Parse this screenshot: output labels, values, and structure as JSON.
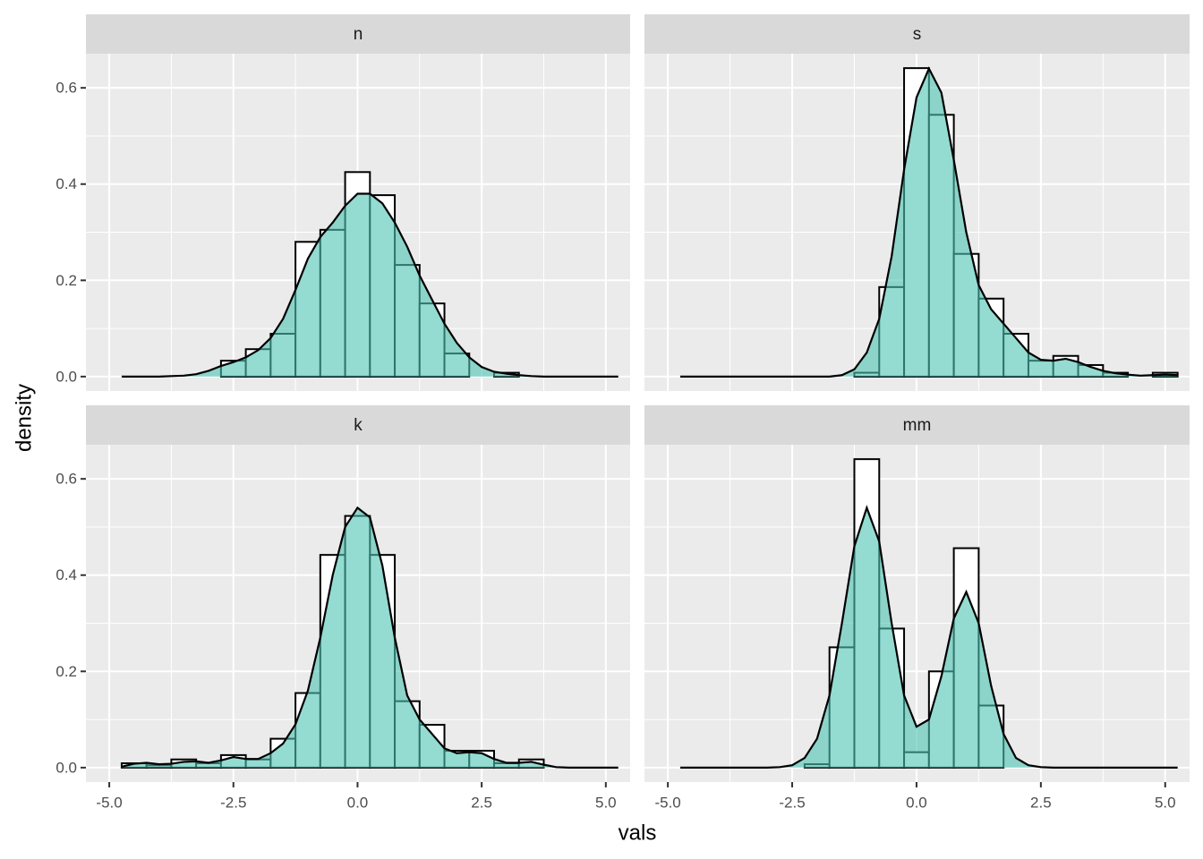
{
  "chart_data": {
    "type": "histogram",
    "x_label": "vals",
    "y_label": "density",
    "xlim": [
      -5.47,
      5.49
    ],
    "ylim": [
      -0.03,
      0.671
    ],
    "xticks": [
      {
        "value": -5,
        "label": "-5.0"
      },
      -2.5,
      {
        "value": 0,
        "label": "0.0"
      },
      2.5,
      {
        "value": 5,
        "label": "5.0"
      }
    ],
    "yticks": [
      {
        "value": 0,
        "label": "0.0"
      },
      0.2,
      0.4,
      0.6
    ],
    "grid": true,
    "bar_color": "#ffffff",
    "bar_outline": "#000000",
    "density_color": "#4cc3b3",
    "density_alpha": 0.6,
    "line_color": "#000000",
    "bins": [
      -4.75,
      -4.25,
      -3.75,
      -3.25,
      -2.75,
      -2.25,
      -1.75,
      -1.25,
      -0.75,
      -0.25,
      0.25,
      0.75,
      1.25,
      1.75,
      2.25,
      2.75,
      3.25,
      3.75,
      4.25,
      4.75,
      5.25
    ],
    "density_x": [
      -4.75,
      -4.5,
      -4.25,
      -4,
      -3.75,
      -3.5,
      -3.25,
      -3,
      -2.75,
      -2.5,
      -2.25,
      -2,
      -1.75,
      -1.5,
      -1.25,
      -1,
      -0.75,
      -0.5,
      -0.25,
      0,
      0.25,
      0.5,
      0.75,
      1,
      1.25,
      1.5,
      1.75,
      2,
      2.25,
      2.5,
      2.75,
      3,
      3.25,
      3.5,
      3.75,
      4,
      4.25,
      4.5,
      4.75,
      5,
      5.25
    ],
    "facets": [
      {
        "title": "n",
        "values": [
          0,
          0,
          0,
          0,
          0.033,
          0.057,
          0.089,
          0.28,
          0.305,
          0.425,
          0.377,
          0.232,
          0.152,
          0.048,
          0,
          0.008,
          0,
          0,
          0,
          0
        ],
        "density": [
          0,
          0,
          0,
          0,
          0.001,
          0.002,
          0.005,
          0.012,
          0.022,
          0.03,
          0.04,
          0.055,
          0.08,
          0.12,
          0.18,
          0.245,
          0.29,
          0.32,
          0.355,
          0.38,
          0.38,
          0.36,
          0.32,
          0.27,
          0.21,
          0.16,
          0.11,
          0.07,
          0.04,
          0.02,
          0.01,
          0.006,
          0.003,
          0.001,
          0,
          0,
          0,
          0,
          0,
          0,
          0
        ]
      },
      {
        "title": "s",
        "values": [
          0,
          0,
          0,
          0,
          0,
          0,
          0,
          0.008,
          0.186,
          0.641,
          0.544,
          0.255,
          0.162,
          0.089,
          0.033,
          0.043,
          0.024,
          0.008,
          0,
          0.008
        ],
        "density": [
          0,
          0,
          0,
          0,
          0,
          0,
          0,
          0,
          0,
          0,
          0,
          0,
          0,
          0.003,
          0.015,
          0.05,
          0.12,
          0.25,
          0.43,
          0.58,
          0.64,
          0.59,
          0.45,
          0.3,
          0.19,
          0.14,
          0.11,
          0.08,
          0.05,
          0.035,
          0.033,
          0.037,
          0.03,
          0.02,
          0.012,
          0.007,
          0.004,
          0.002,
          0.003,
          0.004,
          0.003
        ]
      },
      {
        "title": "k",
        "values": [
          0.009,
          0.005,
          0.017,
          0.009,
          0.026,
          0.017,
          0.06,
          0.155,
          0.442,
          0.523,
          0.442,
          0.138,
          0.089,
          0.035,
          0.035,
          0.009,
          0.017,
          0,
          0,
          0
        ],
        "density": [
          0.002,
          0.008,
          0.01,
          0.007,
          0.008,
          0.012,
          0.013,
          0.01,
          0.015,
          0.022,
          0.018,
          0.018,
          0.03,
          0.05,
          0.09,
          0.16,
          0.27,
          0.4,
          0.5,
          0.54,
          0.52,
          0.42,
          0.27,
          0.15,
          0.1,
          0.07,
          0.04,
          0.03,
          0.032,
          0.03,
          0.018,
          0.01,
          0.01,
          0.012,
          0.006,
          0.001,
          0,
          0,
          0,
          0,
          0
        ]
      },
      {
        "title": "mm",
        "values": [
          0,
          0,
          0,
          0,
          0,
          0.007,
          0.25,
          0.641,
          0.289,
          0.032,
          0.2,
          0.456,
          0.129,
          0,
          0,
          0,
          0,
          0,
          0,
          0
        ],
        "density": [
          0,
          0,
          0,
          0,
          0,
          0,
          0,
          0,
          0.001,
          0.005,
          0.02,
          0.06,
          0.15,
          0.3,
          0.46,
          0.54,
          0.47,
          0.3,
          0.15,
          0.085,
          0.1,
          0.19,
          0.31,
          0.365,
          0.3,
          0.17,
          0.07,
          0.02,
          0.005,
          0.001,
          0,
          0,
          0,
          0,
          0,
          0,
          0,
          0,
          0,
          0,
          0
        ]
      }
    ]
  }
}
